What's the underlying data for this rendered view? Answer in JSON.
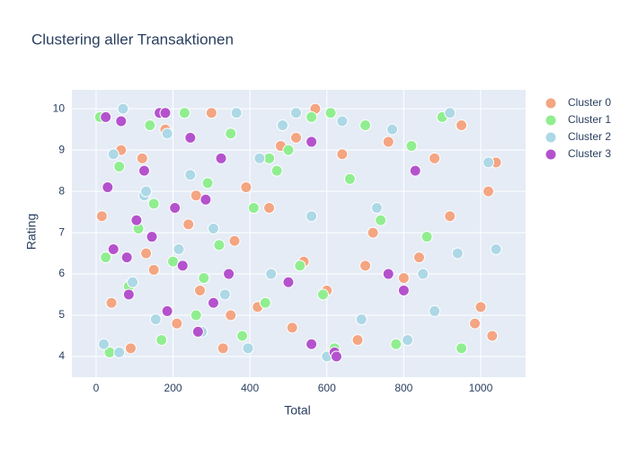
{
  "chart_data": {
    "type": "scatter",
    "title": "Clustering aller Transaktionen",
    "x_label": "Total",
    "y_label": "Rating",
    "xlim": [
      -63,
      1117
    ],
    "ylim": [
      3.5,
      10.46
    ],
    "xticks": [
      0,
      200,
      400,
      600,
      800,
      1000
    ],
    "yticks": [
      4,
      5,
      6,
      7,
      8,
      9,
      10
    ],
    "grid": true,
    "legend": "right",
    "series": [
      {
        "name": "Cluster 0",
        "color": "#f4a582",
        "x": [
          15,
          40,
          65,
          90,
          120,
          150,
          180,
          210,
          240,
          270,
          300,
          330,
          360,
          390,
          420,
          450,
          480,
          510,
          540,
          570,
          600,
          640,
          680,
          720,
          760,
          800,
          840,
          880,
          920,
          950,
          1000,
          1020,
          1040,
          1030,
          985,
          700,
          520,
          350,
          260,
          130
        ],
        "values": [
          7.4,
          5.3,
          9.0,
          4.2,
          8.8,
          6.1,
          9.5,
          4.8,
          7.2,
          5.6,
          9.9,
          4.2,
          6.8,
          8.1,
          5.2,
          7.6,
          9.1,
          4.7,
          6.3,
          10.0,
          5.6,
          8.9,
          4.4,
          7.0,
          9.2,
          5.9,
          6.4,
          8.8,
          7.4,
          9.6,
          5.2,
          8.0,
          8.7,
          4.5,
          4.8,
          6.2,
          9.3,
          5.0,
          7.9,
          6.5
        ]
      },
      {
        "name": "Cluster 1",
        "color": "#90ee90",
        "x": [
          10,
          35,
          60,
          85,
          110,
          140,
          170,
          200,
          230,
          260,
          290,
          320,
          350,
          380,
          410,
          440,
          470,
          500,
          530,
          560,
          590,
          620,
          660,
          700,
          740,
          780,
          820,
          860,
          900,
          950,
          25,
          150,
          280,
          450,
          610
        ],
        "values": [
          9.8,
          4.1,
          8.6,
          5.7,
          7.1,
          9.6,
          4.4,
          6.3,
          9.9,
          5.0,
          8.2,
          6.7,
          9.4,
          4.5,
          7.6,
          5.3,
          8.5,
          9.0,
          6.2,
          9.8,
          5.5,
          4.2,
          8.3,
          9.6,
          7.3,
          4.3,
          9.1,
          6.9,
          9.8,
          4.2,
          6.4,
          7.7,
          5.9,
          8.8,
          9.9
        ]
      },
      {
        "name": "Cluster 2",
        "color": "#add8e6",
        "x": [
          20,
          45,
          70,
          95,
          125,
          155,
          185,
          215,
          245,
          275,
          305,
          335,
          365,
          395,
          425,
          455,
          485,
          520,
          560,
          600,
          640,
          690,
          730,
          770,
          810,
          850,
          880,
          940,
          1040,
          1020,
          920,
          60,
          130
        ],
        "values": [
          4.3,
          8.9,
          10.0,
          5.8,
          7.9,
          4.9,
          9.4,
          6.6,
          8.4,
          4.6,
          7.1,
          5.5,
          9.9,
          4.2,
          8.8,
          6.0,
          9.6,
          9.9,
          7.4,
          4.0,
          9.7,
          4.9,
          7.6,
          9.5,
          4.4,
          6.0,
          5.1,
          6.5,
          6.6,
          8.7,
          9.9,
          4.1,
          8.0
        ]
      },
      {
        "name": "Cluster 3",
        "color": "#b452cd",
        "x": [
          25,
          45,
          65,
          85,
          105,
          125,
          145,
          165,
          185,
          205,
          225,
          245,
          265,
          285,
          305,
          325,
          345,
          30,
          80,
          180,
          500,
          560,
          620,
          760,
          800,
          830,
          560,
          625
        ],
        "values": [
          9.8,
          6.6,
          9.7,
          5.5,
          7.3,
          8.5,
          6.9,
          9.9,
          5.1,
          7.6,
          6.2,
          9.3,
          4.6,
          7.8,
          5.3,
          8.8,
          6.0,
          8.1,
          6.4,
          9.9,
          5.8,
          4.3,
          4.1,
          6.0,
          5.6,
          8.5,
          9.2,
          4.0
        ]
      }
    ]
  }
}
